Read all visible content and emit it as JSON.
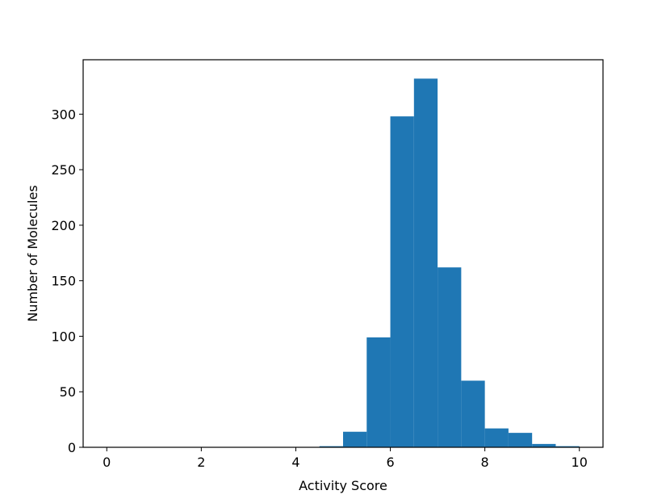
{
  "chart_data": {
    "type": "bar",
    "title": "",
    "xlabel": "Activity Score",
    "ylabel": "Number of Molecules",
    "xlim": [
      -0.5,
      10.5
    ],
    "ylim": [
      0,
      349
    ],
    "xticks": [
      0,
      2,
      4,
      6,
      8,
      10
    ],
    "yticks": [
      0,
      50,
      100,
      150,
      200,
      250,
      300
    ],
    "bin_width": 0.5,
    "bins": [
      {
        "x0": 0.0,
        "x1": 0.5,
        "count": 0
      },
      {
        "x0": 0.5,
        "x1": 1.0,
        "count": 0
      },
      {
        "x0": 1.0,
        "x1": 1.5,
        "count": 0
      },
      {
        "x0": 1.5,
        "x1": 2.0,
        "count": 0
      },
      {
        "x0": 2.0,
        "x1": 2.5,
        "count": 0
      },
      {
        "x0": 2.5,
        "x1": 3.0,
        "count": 0
      },
      {
        "x0": 3.0,
        "x1": 3.5,
        "count": 0
      },
      {
        "x0": 3.5,
        "x1": 4.0,
        "count": 0
      },
      {
        "x0": 4.0,
        "x1": 4.5,
        "count": 0
      },
      {
        "x0": 4.5,
        "x1": 5.0,
        "count": 1
      },
      {
        "x0": 5.0,
        "x1": 5.5,
        "count": 14
      },
      {
        "x0": 5.5,
        "x1": 6.0,
        "count": 99
      },
      {
        "x0": 6.0,
        "x1": 6.5,
        "count": 298
      },
      {
        "x0": 6.5,
        "x1": 7.0,
        "count": 332
      },
      {
        "x0": 7.0,
        "x1": 7.5,
        "count": 162
      },
      {
        "x0": 7.5,
        "x1": 8.0,
        "count": 60
      },
      {
        "x0": 8.0,
        "x1": 8.5,
        "count": 17
      },
      {
        "x0": 8.5,
        "x1": 9.0,
        "count": 13
      },
      {
        "x0": 9.0,
        "x1": 9.5,
        "count": 3
      },
      {
        "x0": 9.5,
        "x1": 10.0,
        "count": 1
      }
    ],
    "grid": false,
    "bar_color": "#1f77b4"
  }
}
